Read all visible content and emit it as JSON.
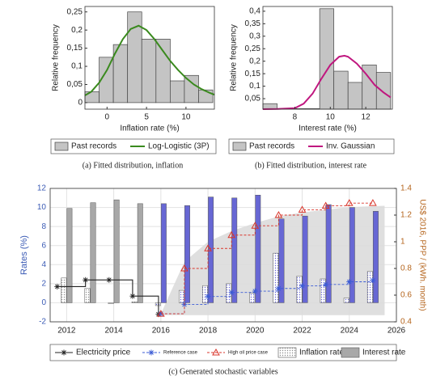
{
  "chart_data": [
    {
      "type": "histogram",
      "caption": "(a) Fitted distribution, inflation",
      "x_label": "Inflation rate (%)",
      "y_label": "Relative frequency",
      "xlim": [
        -2.8,
        13.6
      ],
      "xticks": [
        0,
        5,
        10
      ],
      "ylim": [
        -0.018,
        0.265
      ],
      "yticks": [
        0,
        {
          "value": 0.05,
          "label": "0,05"
        },
        {
          "value": 0.1,
          "label": "0,1"
        },
        {
          "value": 0.15,
          "label": "0,15"
        },
        {
          "value": 0.2,
          "label": "0,2"
        },
        {
          "value": 0.25,
          "label": "0,25"
        }
      ],
      "histogram": {
        "name": "Past records",
        "color": "#c4c4c4",
        "bins": [
          -2.8,
          -1,
          0.8,
          2.6,
          4.4,
          6.2,
          8,
          9.8,
          11.6,
          13.4
        ],
        "values": [
          0.03,
          0.125,
          0.16,
          0.25,
          0.175,
          0.175,
          0.06,
          0.075,
          0.035
        ]
      },
      "curve": {
        "name": "Log-Logistic (3P)",
        "color": "#3a8a1e",
        "x": [
          -2.8,
          -2,
          -1,
          0,
          1,
          2,
          3,
          4,
          5,
          6,
          7,
          8,
          9,
          10,
          11,
          12,
          13,
          13.6
        ],
        "values": [
          0.02,
          0.03,
          0.055,
          0.09,
          0.135,
          0.175,
          0.203,
          0.212,
          0.2,
          0.175,
          0.145,
          0.115,
          0.09,
          0.068,
          0.05,
          0.037,
          0.027,
          0.022
        ]
      }
    },
    {
      "type": "histogram",
      "caption": "(b) Fitted distribution, interest rate",
      "x_label": "Interest rate (%)",
      "y_label": "Relative frequency",
      "xlim": [
        6.2,
        13.5
      ],
      "xticks": [
        8,
        10,
        12
      ],
      "ylim": [
        0.008,
        0.419
      ],
      "yticks": [
        {
          "value": 0.05,
          "label": "0,05"
        },
        {
          "value": 0.1,
          "label": "0,1"
        },
        {
          "value": 0.15,
          "label": "0,15"
        },
        {
          "value": 0.2,
          "label": "0,2"
        },
        {
          "value": 0.25,
          "label": "0,25"
        },
        {
          "value": 0.3,
          "label": "0,3"
        },
        {
          "value": 0.35,
          "label": "0,35"
        },
        {
          "value": 0.4,
          "label": "0,4"
        }
      ],
      "histogram": {
        "name": "Past records",
        "color": "#c4c4c4",
        "bins": [
          6.2,
          7,
          7.8,
          8.6,
          9.4,
          10.2,
          11,
          11.8,
          12.6,
          13.4
        ],
        "values": [
          0.03,
          0.01,
          0.01,
          0.01,
          0.41,
          0.16,
          0.115,
          0.185,
          0.155
        ]
      },
      "curve": {
        "name": "Inv. Gaussian",
        "color": "#c0177f",
        "x": [
          6.2,
          7,
          8,
          8.5,
          9,
          9.5,
          10,
          10.5,
          10.8,
          11,
          11.5,
          12,
          12.5,
          13,
          13.4
        ],
        "values": [
          0.008,
          0.009,
          0.012,
          0.03,
          0.07,
          0.13,
          0.185,
          0.218,
          0.222,
          0.218,
          0.19,
          0.15,
          0.105,
          0.075,
          0.055
        ]
      }
    },
    {
      "type": "combo",
      "caption": "(c) Generated stochastic variables",
      "y_label": "Rates (%)",
      "y_label_color": "#3b5bb5",
      "y2_label": "US$ 2016, PPP / (kWh. month)",
      "y2_label_color": "#b5651d",
      "xlim": [
        2011.3,
        2026
      ],
      "xticks": [
        2012,
        2014,
        2016,
        2018,
        2020,
        2022,
        2024,
        2026
      ],
      "ylim": [
        -2,
        12
      ],
      "yticks": [
        -2,
        0,
        2,
        4,
        6,
        8,
        10,
        12
      ],
      "y2lim": [
        0.4,
        1.4
      ],
      "y2ticks": [
        0.4,
        0.6,
        0.8,
        1,
        1.2,
        1.4
      ],
      "grid": true,
      "forecast_from": 2016,
      "forecast_color": "#6767d4",
      "band": {
        "color": "#dcdcdc",
        "x": [
          2016,
          2017,
          2018,
          2019,
          2020,
          2021,
          2022,
          2023,
          2024,
          2025.5
        ],
        "upper": [
          0.46,
          0.85,
          1.0,
          1.08,
          1.14,
          1.19,
          1.22,
          1.24,
          1.26,
          1.27
        ],
        "lower": [
          0.45,
          0.45,
          0.45,
          0.45,
          0.45,
          0.45,
          0.45,
          0.45,
          0.45,
          0.45
        ]
      },
      "bars": [
        {
          "name": "Inflation rate",
          "color": "#8c8c8c",
          "hatch": true,
          "x": [
            2012,
            2013,
            2014,
            2015,
            2016,
            2017,
            2018,
            2019,
            2020,
            2021,
            2022,
            2023,
            2024,
            2025
          ],
          "values": [
            2.6,
            1.5,
            -0.1,
            0.1,
            -0.3,
            1.3,
            1.8,
            2.0,
            1.0,
            5.2,
            2.8,
            2.5,
            0.5,
            3.3
          ]
        },
        {
          "name": "Interest rate",
          "color": "#a8a8a8",
          "hatch": false,
          "x": [
            2012,
            2013,
            2014,
            2015,
            2016,
            2017,
            2018,
            2019,
            2020,
            2021,
            2022,
            2023,
            2024,
            2025
          ],
          "values": [
            9.9,
            10.5,
            10.8,
            10.4,
            10.4,
            10.2,
            11.1,
            11.0,
            11.3,
            8.8,
            9.1,
            10.3,
            10.0,
            9.6
          ]
        }
      ],
      "series": [
        {
          "name": "Electricity price",
          "color": "#222222",
          "marker": "star",
          "dash": false,
          "axis": "y2",
          "x": [
            2011.6,
            2012.8,
            2013.8,
            2014.8,
            2015.9
          ],
          "values": [
            0.664,
            0.714,
            0.714,
            0.593,
            0.457
          ]
        },
        {
          "name": "Reference case",
          "color": "#3b5bd5",
          "marker": "star",
          "dash": true,
          "axis": "y2",
          "x": [
            2016,
            2017,
            2018,
            2019,
            2020,
            2021,
            2022,
            2023,
            2024,
            2025
          ],
          "values": [
            0.46,
            0.53,
            0.59,
            0.62,
            0.63,
            0.65,
            0.67,
            0.68,
            0.7,
            0.71
          ]
        },
        {
          "name": "High oil price case",
          "color": "#d9362b",
          "marker": "triangle",
          "dash": true,
          "axis": "y2",
          "x": [
            2016,
            2017,
            2018,
            2019,
            2020,
            2021,
            2022,
            2023,
            2024,
            2025
          ],
          "values": [
            0.46,
            0.8,
            0.95,
            1.05,
            1.12,
            1.2,
            1.24,
            1.27,
            1.29,
            1.29
          ]
        }
      ]
    }
  ]
}
